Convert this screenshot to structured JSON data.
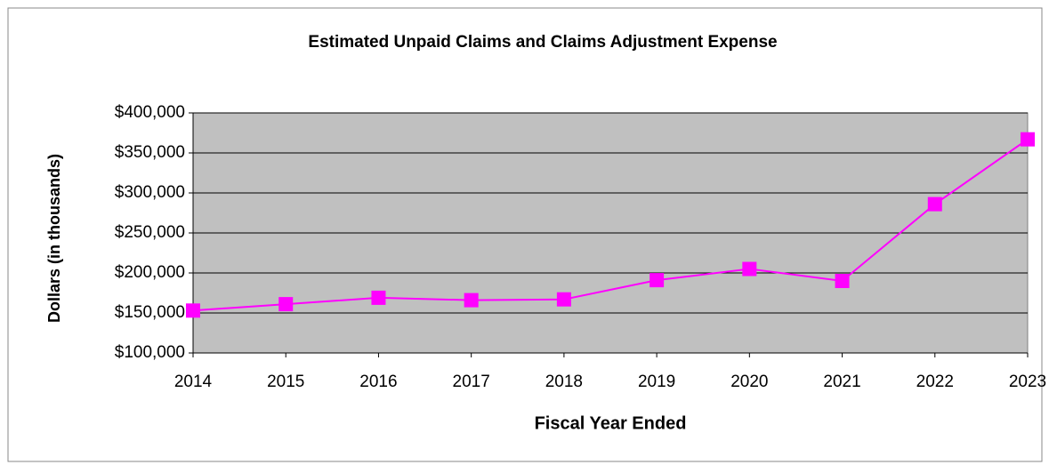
{
  "chart_data": {
    "type": "line",
    "title": "Estimated Unpaid Claims and Claims Adjustment Expense",
    "x_label": "Fiscal Year Ended",
    "y_label": "Dollars (in thousands)",
    "categories": [
      "2014",
      "2015",
      "2016",
      "2017",
      "2018",
      "2019",
      "2020",
      "2021",
      "2022",
      "2023"
    ],
    "series": [
      {
        "color": "#ff00ff",
        "values": [
          153000,
          161000,
          169000,
          166000,
          167000,
          191000,
          205000,
          190000,
          286000,
          367000
        ]
      }
    ],
    "ylim": [
      100000,
      400000
    ],
    "yticks": [
      {
        "value": 100000,
        "label": "$100,000"
      },
      {
        "value": 150000,
        "label": "$150,000"
      },
      {
        "value": 200000,
        "label": "$200,000"
      },
      {
        "value": 250000,
        "label": "$250,000"
      },
      {
        "value": 300000,
        "label": "$300,000"
      },
      {
        "value": 350000,
        "label": "$350,000"
      },
      {
        "value": 400000,
        "label": "$400,000"
      }
    ],
    "grid": true
  }
}
